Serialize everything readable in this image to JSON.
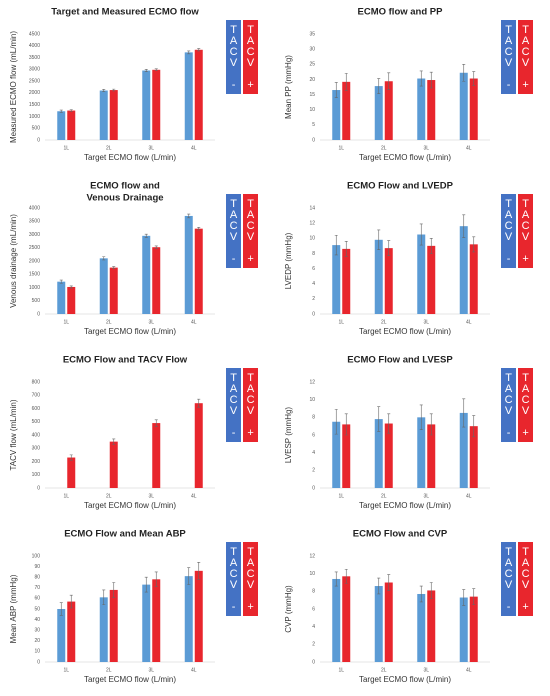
{
  "chart_data": [
    {
      "type": "bar",
      "title": [
        "Target and Measured ECMO flow"
      ],
      "y_label": "Measured ECMO flow (mL/min)",
      "x_label": "Target ECMO flow (L/min)",
      "categories": [
        "1L",
        "2L",
        "3L",
        "4L"
      ],
      "ylim": [
        0,
        4500
      ],
      "yticks": [
        0,
        500,
        1000,
        1500,
        2000,
        2500,
        3000,
        3500,
        4000,
        4500
      ],
      "series": [
        {
          "name": "TACV -",
          "color": "#5b9bd5",
          "legend_color": "#4472c4",
          "values": [
            1220,
            2100,
            2950,
            3720
          ],
          "errors": [
            50,
            50,
            50,
            60
          ]
        },
        {
          "name": "TACV +",
          "color": "#e8262d",
          "legend_color": "#e8262d",
          "values": [
            1250,
            2120,
            2980,
            3830
          ],
          "errors": [
            40,
            40,
            40,
            50
          ]
        }
      ]
    },
    {
      "type": "bar",
      "title": [
        "ECMO flow and PP"
      ],
      "y_label": "Mean PP (mmHg)",
      "x_label": "Target ECMO flow (L/min)",
      "categories": [
        "1L",
        "2L",
        "3L",
        "4L"
      ],
      "ylim": [
        0,
        35
      ],
      "yticks": [
        0,
        5,
        10,
        15,
        20,
        25,
        30,
        35
      ],
      "series": [
        {
          "name": "TACV -",
          "color": "#5b9bd5",
          "legend_color": "#4472c4",
          "values": [
            16.5,
            17.8,
            20.3,
            22.2
          ],
          "errors": [
            2.5,
            2.5,
            2.5,
            2.8
          ]
        },
        {
          "name": "TACV +",
          "color": "#e8262d",
          "legend_color": "#e8262d",
          "values": [
            19.2,
            19.4,
            19.8,
            20.3
          ],
          "errors": [
            2.8,
            2.8,
            2.6,
            2.3
          ]
        }
      ]
    },
    {
      "type": "bar",
      "title": [
        "ECMO flow and",
        "Venous Drainage"
      ],
      "y_label": "Venous drainage (mL/min)",
      "x_label": "Target ECMO flow (L/min)",
      "categories": [
        "1L",
        "2L",
        "3L",
        "4L"
      ],
      "ylim": [
        0,
        4000
      ],
      "yticks": [
        0,
        500,
        1000,
        1500,
        2000,
        2500,
        3000,
        3500,
        4000
      ],
      "series": [
        {
          "name": "TACV -",
          "color": "#5b9bd5",
          "legend_color": "#4472c4",
          "values": [
            1220,
            2100,
            2950,
            3700
          ],
          "errors": [
            60,
            60,
            60,
            70
          ]
        },
        {
          "name": "TACV +",
          "color": "#e8262d",
          "legend_color": "#e8262d",
          "values": [
            1020,
            1750,
            2520,
            3220
          ],
          "errors": [
            40,
            40,
            50,
            50
          ]
        }
      ]
    },
    {
      "type": "bar",
      "title": [
        "ECMO Flow and LVEDP"
      ],
      "y_label": "LVEDP (mmHg)",
      "x_label": "Target ECMO flow (L/min)",
      "categories": [
        "1L",
        "2L",
        "3L",
        "4L"
      ],
      "ylim": [
        0,
        14
      ],
      "yticks": [
        0,
        2,
        4,
        6,
        8,
        10,
        12,
        14
      ],
      "series": [
        {
          "name": "TACV -",
          "color": "#5b9bd5",
          "legend_color": "#4472c4",
          "values": [
            9.1,
            9.8,
            10.5,
            11.6
          ],
          "errors": [
            1.3,
            1.3,
            1.4,
            1.5
          ]
        },
        {
          "name": "TACV +",
          "color": "#e8262d",
          "legend_color": "#e8262d",
          "values": [
            8.6,
            8.7,
            9.0,
            9.2
          ],
          "errors": [
            1.0,
            1.0,
            1.0,
            1.0
          ]
        }
      ]
    },
    {
      "type": "bar",
      "title": [
        "ECMO Flow and TACV Flow"
      ],
      "y_label": "TACV flow (mL/min)",
      "x_label": "Target ECMO flow (L/min)",
      "categories": [
        "1L",
        "2L",
        "3L",
        "4L"
      ],
      "ylim": [
        0,
        800
      ],
      "yticks": [
        0,
        100,
        200,
        300,
        400,
        500,
        600,
        700,
        800
      ],
      "series": [
        {
          "name": "TACV -",
          "color": "#5b9bd5",
          "legend_color": "#4472c4",
          "values": [
            null,
            null,
            null,
            null
          ],
          "errors": [
            null,
            null,
            null,
            null
          ]
        },
        {
          "name": "TACV +",
          "color": "#e8262d",
          "legend_color": "#e8262d",
          "values": [
            230,
            350,
            490,
            640
          ],
          "errors": [
            20,
            20,
            25,
            30
          ]
        }
      ]
    },
    {
      "type": "bar",
      "title": [
        "ECMO Flow and LVESP"
      ],
      "y_label": "LVESP (mmHg)",
      "x_label": "Target ECMO flow (L/min)",
      "categories": [
        "1L",
        "2L",
        "3L",
        "4L"
      ],
      "ylim": [
        0,
        12
      ],
      "yticks": [
        0,
        2,
        4,
        6,
        8,
        10,
        12
      ],
      "series": [
        {
          "name": "TACV -",
          "color": "#5b9bd5",
          "legend_color": "#4472c4",
          "values": [
            7.5,
            7.8,
            8.0,
            8.5
          ],
          "errors": [
            1.4,
            1.4,
            1.4,
            1.6
          ]
        },
        {
          "name": "TACV +",
          "color": "#e8262d",
          "legend_color": "#e8262d",
          "values": [
            7.2,
            7.3,
            7.2,
            7.0
          ],
          "errors": [
            1.2,
            1.1,
            1.2,
            1.2
          ]
        }
      ]
    },
    {
      "type": "bar",
      "title": [
        "ECMO Flow and Mean ABP"
      ],
      "y_label": "Mean ABP (mmHg)",
      "x_label": "Target ECMO flow (L/min)",
      "categories": [
        "1L",
        "2L",
        "3L",
        "4L"
      ],
      "ylim": [
        0,
        100
      ],
      "yticks": [
        0,
        10,
        20,
        30,
        40,
        50,
        60,
        70,
        80,
        90,
        100
      ],
      "series": [
        {
          "name": "TACV -",
          "color": "#5b9bd5",
          "legend_color": "#4472c4",
          "values": [
            50,
            61,
            73,
            81
          ],
          "errors": [
            6,
            7,
            7,
            8
          ]
        },
        {
          "name": "TACV +",
          "color": "#e8262d",
          "legend_color": "#e8262d",
          "values": [
            57,
            68,
            78,
            86
          ],
          "errors": [
            6,
            7,
            7,
            8
          ]
        }
      ]
    },
    {
      "type": "bar",
      "title": [
        "ECMO Flow and CVP"
      ],
      "y_label": "CVP (mmHg)",
      "x_label": "Target ECMO flow (L/min)",
      "categories": [
        "1L",
        "2L",
        "3L",
        "4L"
      ],
      "ylim": [
        0,
        12
      ],
      "yticks": [
        0,
        2,
        4,
        6,
        8,
        10,
        12
      ],
      "series": [
        {
          "name": "TACV -",
          "color": "#5b9bd5",
          "legend_color": "#4472c4",
          "values": [
            9.4,
            8.6,
            7.7,
            7.3
          ],
          "errors": [
            0.8,
            0.9,
            0.9,
            0.9
          ]
        },
        {
          "name": "TACV +",
          "color": "#e8262d",
          "legend_color": "#e8262d",
          "values": [
            9.7,
            9.0,
            8.1,
            7.4
          ],
          "errors": [
            0.8,
            0.9,
            0.9,
            0.9
          ]
        }
      ]
    }
  ]
}
